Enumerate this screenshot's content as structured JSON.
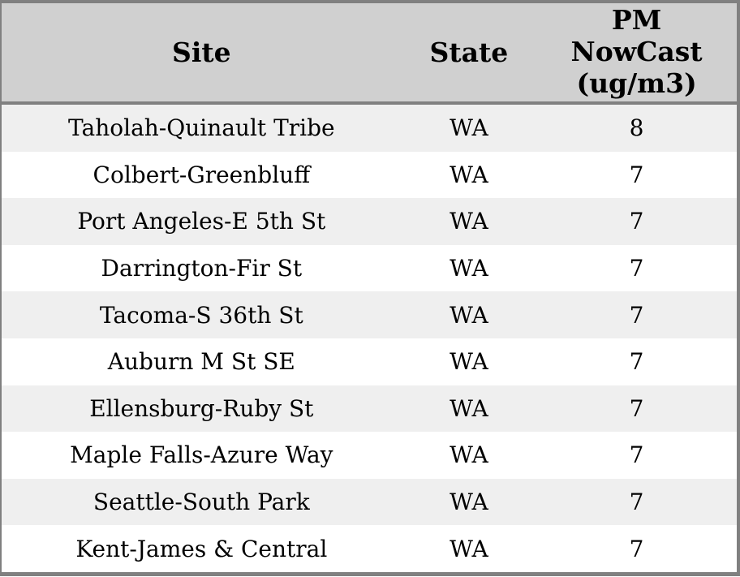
{
  "table": {
    "columns": [
      {
        "id": "site",
        "label": "Site"
      },
      {
        "id": "state",
        "label": "State"
      },
      {
        "id": "pm_nowcast",
        "label": "PM\nNowCast\n(ug/m3)"
      }
    ],
    "rows": [
      {
        "site": "Taholah-Quinault Tribe",
        "state": "WA",
        "pm_nowcast": 8
      },
      {
        "site": "Colbert-Greenbluff",
        "state": "WA",
        "pm_nowcast": 7
      },
      {
        "site": "Port Angeles-E 5th St",
        "state": "WA",
        "pm_nowcast": 7
      },
      {
        "site": "Darrington-Fir St",
        "state": "WA",
        "pm_nowcast": 7
      },
      {
        "site": "Tacoma-S 36th St",
        "state": "WA",
        "pm_nowcast": 7
      },
      {
        "site": "Auburn M St SE",
        "state": "WA",
        "pm_nowcast": 7
      },
      {
        "site": "Ellensburg-Ruby St",
        "state": "WA",
        "pm_nowcast": 7
      },
      {
        "site": "Maple Falls-Azure Way",
        "state": "WA",
        "pm_nowcast": 7
      },
      {
        "site": "Seattle-South Park",
        "state": "WA",
        "pm_nowcast": 7
      },
      {
        "site": "Kent-James & Central",
        "state": "WA",
        "pm_nowcast": 7
      }
    ]
  },
  "colors": {
    "header_bg": "#d0d0d0",
    "row_alt_bg": "#efefef",
    "row_bg": "#ffffff",
    "border": "#808080",
    "text": "#000000"
  }
}
